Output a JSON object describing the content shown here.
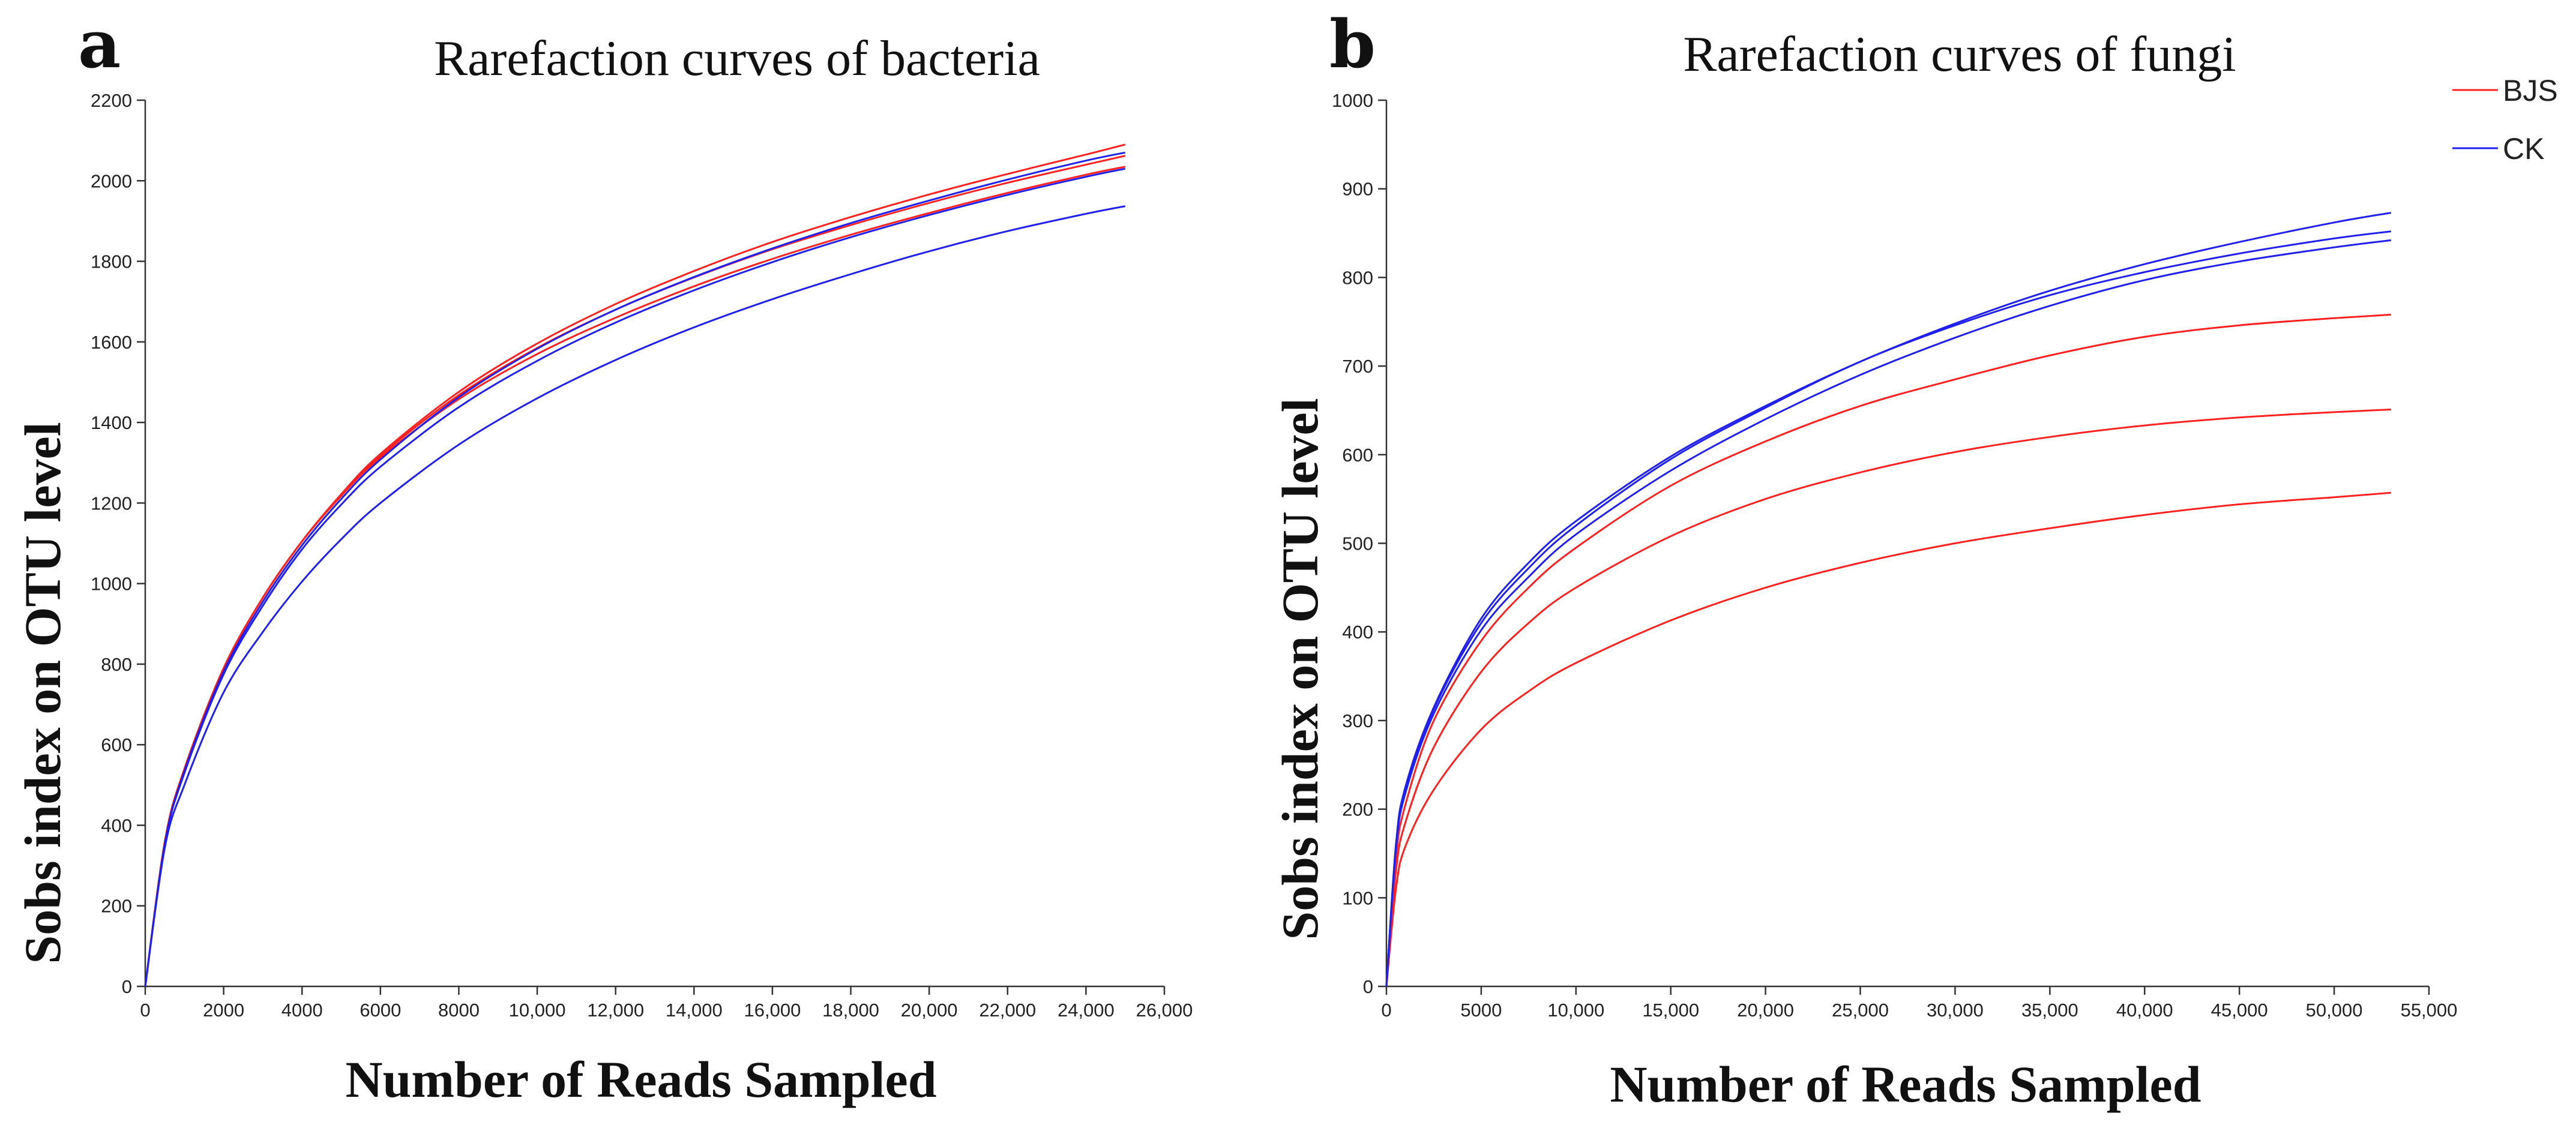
{
  "colors": {
    "BJS": "#ff2020",
    "CK": "#2020ee"
  },
  "legend": [
    {
      "name": "BJS",
      "color": "#ff2020"
    },
    {
      "name": "CK",
      "color": "#2020ee"
    }
  ],
  "chart_data": [
    {
      "type": "line",
      "panel": "a",
      "title": "Rarefaction curves of bacteria",
      "xlabel": "Number of Reads Sampled",
      "ylabel": "Sobs index on OTU level",
      "xlim": [
        0,
        26000
      ],
      "ylim": [
        0,
        2200
      ],
      "xticks": [
        0,
        2000,
        4000,
        6000,
        8000,
        10000,
        12000,
        14000,
        16000,
        18000,
        20000,
        22000,
        24000,
        26000
      ],
      "xtick_labels": [
        "0",
        "2000",
        "4000",
        "6000",
        "8000",
        "10,000",
        "12,000",
        "14,000",
        "16,000",
        "18,000",
        "20,000",
        "22,000",
        "24,000",
        "26,000"
      ],
      "yticks": [
        0,
        200,
        400,
        600,
        800,
        1000,
        1200,
        1400,
        1600,
        1800,
        2000,
        2200
      ],
      "ytick_labels": [
        "0",
        "200",
        "400",
        "600",
        "800",
        "1000",
        "1200",
        "1400",
        "1600",
        "1800",
        "2000",
        "2200"
      ],
      "x": [
        0,
        500,
        1000,
        2000,
        3000,
        4000,
        5000,
        6000,
        8000,
        10000,
        12000,
        14000,
        16000,
        18000,
        20000,
        22000,
        24000,
        25000
      ],
      "series": [
        {
          "name": "BJS",
          "color": "#ff2020",
          "values": [
            0,
            360,
            540,
            790,
            965,
            1105,
            1220,
            1318,
            1468,
            1585,
            1680,
            1760,
            1830,
            1890,
            1945,
            1995,
            2040,
            2062
          ]
        },
        {
          "name": "BJS",
          "color": "#ff2020",
          "values": [
            0,
            360,
            540,
            790,
            965,
            1105,
            1218,
            1313,
            1458,
            1570,
            1660,
            1738,
            1806,
            1866,
            1920,
            1970,
            2015,
            2035
          ]
        },
        {
          "name": "BJS",
          "color": "#ff2020",
          "values": [
            0,
            360,
            540,
            790,
            965,
            1105,
            1222,
            1322,
            1476,
            1596,
            1694,
            1776,
            1848,
            1910,
            1966,
            2017,
            2065,
            2090
          ]
        },
        {
          "name": "CK",
          "color": "#2020ee",
          "values": [
            0,
            355,
            530,
            775,
            945,
            1085,
            1196,
            1290,
            1438,
            1553,
            1648,
            1728,
            1798,
            1860,
            1915,
            1965,
            2010,
            2030
          ]
        },
        {
          "name": "CK",
          "color": "#2020ee",
          "values": [
            0,
            355,
            535,
            782,
            955,
            1095,
            1210,
            1308,
            1463,
            1583,
            1680,
            1761,
            1832,
            1895,
            1951,
            2003,
            2050,
            2070
          ]
        },
        {
          "name": "CK",
          "color": "#2020ee",
          "values": [
            0,
            345,
            500,
            730,
            880,
            1005,
            1110,
            1200,
            1345,
            1460,
            1555,
            1636,
            1706,
            1768,
            1825,
            1875,
            1918,
            1937
          ]
        }
      ]
    },
    {
      "type": "line",
      "panel": "b",
      "title": "Rarefaction curves of fungi",
      "xlabel": "Number of Reads Sampled",
      "ylabel": "Sobs index on OTU level",
      "xlim": [
        0,
        55000
      ],
      "ylim": [
        0,
        1000
      ],
      "xticks": [
        0,
        5000,
        10000,
        15000,
        20000,
        25000,
        30000,
        35000,
        40000,
        45000,
        50000,
        55000
      ],
      "xtick_labels": [
        "0",
        "5000",
        "10,000",
        "15,000",
        "20,000",
        "25,000",
        "30,000",
        "35,000",
        "40,000",
        "45,000",
        "50,000",
        "55,000"
      ],
      "yticks": [
        0,
        100,
        200,
        300,
        400,
        500,
        600,
        700,
        800,
        900,
        1000
      ],
      "ytick_labels": [
        "0",
        "100",
        "200",
        "300",
        "400",
        "500",
        "600",
        "700",
        "800",
        "900",
        "1000"
      ],
      "x": [
        0,
        500,
        1000,
        2500,
        5000,
        7500,
        10000,
        15000,
        20000,
        25000,
        30000,
        35000,
        40000,
        45000,
        50000,
        53000
      ],
      "series": [
        {
          "name": "BJS",
          "color": "#ff2020",
          "values": [
            0,
            110,
            158,
            222,
            290,
            333,
            365,
            413,
            450,
            478,
            500,
            517,
            532,
            544,
            552,
            557
          ]
        },
        {
          "name": "BJS",
          "color": "#ff2020",
          "values": [
            0,
            130,
            185,
            270,
            355,
            410,
            450,
            508,
            550,
            580,
            603,
            620,
            633,
            642,
            648,
            651
          ]
        },
        {
          "name": "BJS",
          "color": "#ff2020",
          "values": [
            0,
            145,
            205,
            300,
            390,
            450,
            495,
            565,
            615,
            655,
            685,
            712,
            733,
            746,
            754,
            758
          ]
        },
        {
          "name": "CK",
          "color": "#2020ee",
          "values": [
            0,
            160,
            225,
            315,
            415,
            478,
            525,
            598,
            655,
            705,
            748,
            785,
            815,
            840,
            862,
            873
          ]
        },
        {
          "name": "CK",
          "color": "#2020ee",
          "values": [
            0,
            158,
            222,
            313,
            410,
            472,
            520,
            595,
            653,
            705,
            746,
            780,
            806,
            827,
            844,
            852
          ]
        },
        {
          "name": "CK",
          "color": "#2020ee",
          "values": [
            0,
            155,
            218,
            308,
            402,
            462,
            510,
            582,
            640,
            690,
            732,
            768,
            797,
            818,
            834,
            842
          ]
        }
      ]
    }
  ]
}
